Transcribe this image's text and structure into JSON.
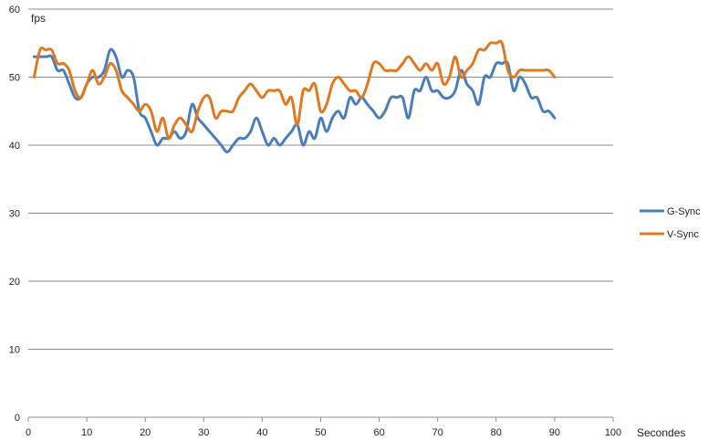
{
  "chart_data": {
    "type": "line",
    "title": "",
    "ylabel": "fps",
    "xlabel": "Secondes",
    "xlim": [
      0,
      100
    ],
    "ylim": [
      0,
      60
    ],
    "x_ticks": [
      "0",
      "10",
      "20",
      "30",
      "40",
      "50",
      "60",
      "70",
      "80",
      "90",
      "100"
    ],
    "y_ticks": [
      "0",
      "10",
      "20",
      "30",
      "40",
      "50",
      "60"
    ],
    "grid": "horizontal",
    "legend_position": "right",
    "series": [
      {
        "name": "G-Sync",
        "color": "#4a7ebb",
        "points": [
          [
            1,
            53
          ],
          [
            3,
            53
          ],
          [
            4,
            53
          ],
          [
            5,
            51
          ],
          [
            6,
            51
          ],
          [
            7,
            49
          ],
          [
            8,
            47
          ],
          [
            9,
            47
          ],
          [
            10,
            49
          ],
          [
            11,
            50
          ],
          [
            12,
            50
          ],
          [
            13,
            51
          ],
          [
            14,
            54
          ],
          [
            15,
            53
          ],
          [
            16,
            50
          ],
          [
            17,
            51
          ],
          [
            18,
            50
          ],
          [
            19,
            45
          ],
          [
            20,
            44
          ],
          [
            21,
            42
          ],
          [
            22,
            40
          ],
          [
            23,
            41
          ],
          [
            24,
            41
          ],
          [
            25,
            42
          ],
          [
            26,
            41
          ],
          [
            27,
            42
          ],
          [
            28,
            46
          ],
          [
            29,
            44
          ],
          [
            30,
            43
          ],
          [
            31,
            42
          ],
          [
            32,
            41
          ],
          [
            33,
            40
          ],
          [
            34,
            39
          ],
          [
            35,
            40
          ],
          [
            36,
            41
          ],
          [
            37,
            41
          ],
          [
            38,
            42
          ],
          [
            39,
            44
          ],
          [
            40,
            42
          ],
          [
            41,
            40
          ],
          [
            42,
            41
          ],
          [
            43,
            40
          ],
          [
            44,
            41
          ],
          [
            45,
            42
          ],
          [
            46,
            43
          ],
          [
            47,
            40
          ],
          [
            48,
            42
          ],
          [
            49,
            41
          ],
          [
            50,
            44
          ],
          [
            51,
            42
          ],
          [
            52,
            44
          ],
          [
            53,
            45
          ],
          [
            54,
            44
          ],
          [
            55,
            47
          ],
          [
            56,
            46
          ],
          [
            57,
            47
          ],
          [
            58,
            46
          ],
          [
            59,
            45
          ],
          [
            60,
            44
          ],
          [
            61,
            45
          ],
          [
            62,
            47
          ],
          [
            63,
            47
          ],
          [
            64,
            47
          ],
          [
            65,
            44
          ],
          [
            66,
            48
          ],
          [
            67,
            48
          ],
          [
            68,
            50
          ],
          [
            69,
            48
          ],
          [
            70,
            48
          ],
          [
            71,
            47
          ],
          [
            72,
            47
          ],
          [
            73,
            48
          ],
          [
            74,
            51
          ],
          [
            75,
            49
          ],
          [
            76,
            48
          ],
          [
            77,
            46
          ],
          [
            78,
            50
          ],
          [
            79,
            50
          ],
          [
            80,
            52
          ],
          [
            81,
            52
          ],
          [
            82,
            52
          ],
          [
            83,
            48
          ],
          [
            84,
            50
          ],
          [
            85,
            49
          ],
          [
            86,
            47
          ],
          [
            87,
            47
          ],
          [
            88,
            45
          ],
          [
            89,
            45
          ],
          [
            90,
            44
          ]
        ]
      },
      {
        "name": "V-Sync",
        "color": "#e0791f",
        "points": [
          [
            1,
            50
          ],
          [
            2,
            54
          ],
          [
            3,
            54
          ],
          [
            4,
            54
          ],
          [
            5,
            52
          ],
          [
            6,
            52
          ],
          [
            7,
            51
          ],
          [
            8,
            48
          ],
          [
            9,
            47
          ],
          [
            10,
            49
          ],
          [
            11,
            51
          ],
          [
            12,
            49
          ],
          [
            13,
            50
          ],
          [
            14,
            52
          ],
          [
            15,
            51
          ],
          [
            16,
            48
          ],
          [
            17,
            47
          ],
          [
            18,
            46
          ],
          [
            19,
            45
          ],
          [
            20,
            46
          ],
          [
            21,
            45
          ],
          [
            22,
            42
          ],
          [
            23,
            44
          ],
          [
            24,
            41
          ],
          [
            25,
            43
          ],
          [
            26,
            44
          ],
          [
            27,
            43
          ],
          [
            28,
            42
          ],
          [
            29,
            45
          ],
          [
            30,
            47
          ],
          [
            31,
            47
          ],
          [
            32,
            44
          ],
          [
            33,
            45
          ],
          [
            34,
            45
          ],
          [
            35,
            45
          ],
          [
            36,
            47
          ],
          [
            37,
            48
          ],
          [
            38,
            49
          ],
          [
            39,
            48
          ],
          [
            40,
            47
          ],
          [
            41,
            48
          ],
          [
            42,
            48
          ],
          [
            43,
            48
          ],
          [
            44,
            46
          ],
          [
            45,
            47
          ],
          [
            46,
            43
          ],
          [
            47,
            48
          ],
          [
            48,
            48
          ],
          [
            49,
            49
          ],
          [
            50,
            45
          ],
          [
            51,
            46
          ],
          [
            52,
            49
          ],
          [
            53,
            50
          ],
          [
            54,
            49
          ],
          [
            55,
            48
          ],
          [
            56,
            48
          ],
          [
            57,
            47
          ],
          [
            58,
            49
          ],
          [
            59,
            52
          ],
          [
            60,
            52
          ],
          [
            61,
            51
          ],
          [
            62,
            51
          ],
          [
            63,
            51
          ],
          [
            64,
            52
          ],
          [
            65,
            53
          ],
          [
            66,
            52
          ],
          [
            67,
            51
          ],
          [
            68,
            52
          ],
          [
            69,
            51
          ],
          [
            70,
            52
          ],
          [
            71,
            49
          ],
          [
            72,
            50
          ],
          [
            73,
            53
          ],
          [
            74,
            50
          ],
          [
            75,
            51
          ],
          [
            76,
            52
          ],
          [
            77,
            54
          ],
          [
            78,
            54
          ],
          [
            79,
            55
          ],
          [
            80,
            55
          ],
          [
            81,
            55
          ],
          [
            82,
            51
          ],
          [
            83,
            50
          ],
          [
            84,
            51
          ],
          [
            85,
            51
          ],
          [
            86,
            51
          ],
          [
            87,
            51
          ],
          [
            88,
            51
          ],
          [
            89,
            51
          ],
          [
            90,
            50
          ]
        ]
      }
    ]
  }
}
